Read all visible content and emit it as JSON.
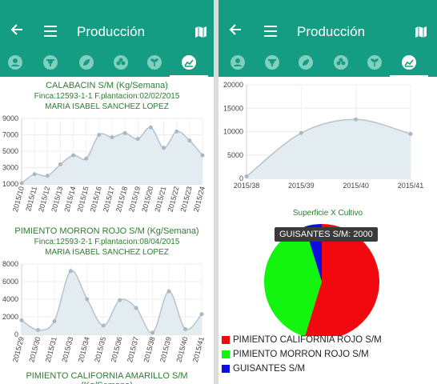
{
  "app": {
    "title": "Producción"
  },
  "icons": {
    "back": "arrow-left-icon",
    "menu": "menu-icon",
    "map": "map-icon",
    "tabs": [
      "person-icon",
      "farmer-icon",
      "leaf-icon",
      "clover-icon",
      "sprout-icon",
      "chart-icon"
    ]
  },
  "colors": {
    "primary": "#159d83",
    "title_green": "#2e7d32",
    "area_fill": "#e3ecf1",
    "line": "#b7c3cb"
  },
  "left": {
    "chart1": {
      "title": "CALABACIN S/M (Kg/Semana)",
      "finca": "Finca:12593-1-1 F.plantacion:02/02/2015",
      "owner": "MARIA ISABEL SANCHEZ LOPEZ"
    },
    "chart2": {
      "title": "PIMIENTO MORRON ROJO S/M (Kg/Semana)",
      "finca": "Finca:12593-2-1 F.plantacion:08/04/2015",
      "owner": "MARIA ISABEL SANCHEZ LOPEZ"
    },
    "chart3": {
      "title": "PIMIENTO CALIFORNIA AMARILLO S/M (Kg/Semana)"
    }
  },
  "right": {
    "pie_title": "Superficie X Cultivo",
    "tooltip": "GUISANTES S/M: 2000",
    "legend": [
      {
        "label": "PIMIENTO CALIFORNIA ROJO S/M",
        "color": "#f2080f"
      },
      {
        "label": "PIMIENTO MORRON ROJO S/M",
        "color": "#13f40f"
      },
      {
        "label": "GUISANTES S/M",
        "color": "#0d0de0"
      }
    ]
  },
  "chart_data": [
    {
      "type": "area",
      "title": "CALABACIN S/M (Kg/Semana)",
      "x": [
        "2015/10",
        "2015/11",
        "2015/12",
        "2015/13",
        "2015/14",
        "2015/15",
        "2015/16",
        "2015/17",
        "2015/18",
        "2015/19",
        "2015/20",
        "2015/21",
        "2015/22",
        "2015/23",
        "2015/24"
      ],
      "values": [
        1100,
        2200,
        2000,
        3400,
        4500,
        4100,
        7000,
        6700,
        7200,
        6500,
        7900,
        5400,
        7400,
        6300,
        4500
      ],
      "yticks": [
        "1000",
        "3000",
        "5000",
        "7000",
        "9000"
      ],
      "ylim": [
        1000,
        9000
      ]
    },
    {
      "type": "area",
      "title": "PIMIENTO MORRON ROJO S/M (Kg/Semana)",
      "x": [
        "2015/29",
        "2015/30",
        "2015/31",
        "2015/33",
        "2015/34",
        "2015/35",
        "2015/36",
        "2015/37",
        "2015/38",
        "2015/39",
        "2015/40",
        "2015/41"
      ],
      "values": [
        1600,
        500,
        1500,
        7200,
        4000,
        1000,
        3900,
        3000,
        200,
        4900,
        600,
        2300
      ],
      "yticks": [
        "0",
        "2000",
        "4000",
        "6000",
        "8000"
      ],
      "ylim": [
        0,
        8000
      ]
    },
    {
      "type": "area",
      "x": [
        "2015/38",
        "2015/39",
        "2015/40",
        "2015/41"
      ],
      "values": [
        400,
        9700,
        12600,
        9500
      ],
      "yticks": [
        "0",
        "5000",
        "10000",
        "15000",
        "20000"
      ],
      "ylim": [
        0,
        20000
      ]
    },
    {
      "type": "pie",
      "title": "Superficie X Cultivo",
      "labels": [
        "PIMIENTO CALIFORNIA ROJO S/M",
        "PIMIENTO MORRON ROJO S/M",
        "GUISANTES S/M"
      ],
      "values": [
        23000,
        17000,
        2000
      ]
    }
  ]
}
